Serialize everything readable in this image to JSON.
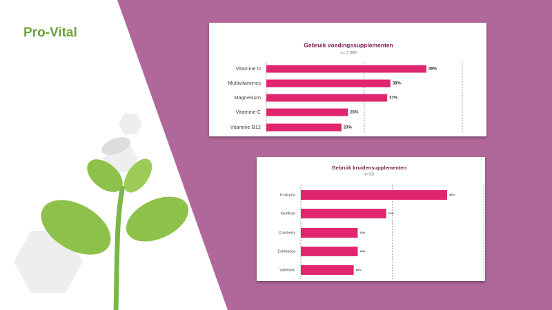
{
  "logo": "Pro-Vital",
  "chart_data": [
    {
      "type": "bar",
      "orientation": "horizontal",
      "title": "Gebruik voedingssupplementen",
      "subtitle": "n= 2.059",
      "categories": [
        "Vitamine D",
        "Multivitamines",
        "Magnesium",
        "Vitamine C",
        "Vitamine B12"
      ],
      "values": [
        49,
        38,
        37,
        25,
        23
      ],
      "value_labels": [
        "49%",
        "38%",
        "37%",
        "25%",
        "23%"
      ],
      "color": "#e0266f",
      "xlim": [
        0,
        60
      ],
      "xticks": [
        0,
        30,
        60
      ],
      "grid": true
    },
    {
      "type": "bar",
      "orientation": "horizontal",
      "title": "Gebruik kruidensupplementen",
      "subtitle": "n= 681",
      "categories": [
        "Kurkuma",
        "Knoflook",
        "Cranberry",
        "Echinacea",
        "Valeriaan"
      ],
      "values": [
        36,
        21,
        14,
        14,
        13
      ],
      "value_labels": [
        "36%",
        "21%",
        "14%",
        "14%",
        "13%"
      ],
      "color": "#e0266f",
      "xlim": [
        0,
        45
      ],
      "xticks": [
        0,
        22.5,
        45
      ],
      "grid": true
    }
  ]
}
